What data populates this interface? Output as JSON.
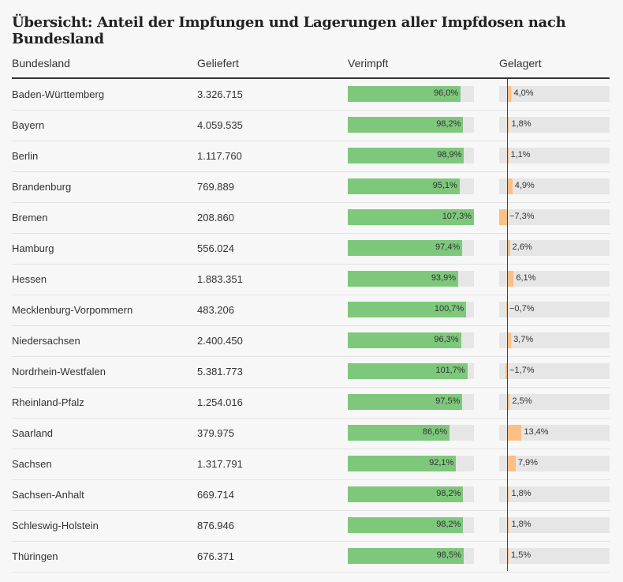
{
  "chart_data": {
    "type": "table",
    "title": "Übersicht: Anteil der Impfungen und Lagerungen aller Impfdosen nach Bundesland",
    "columns": [
      "Bundesland",
      "Geliefert",
      "Verimpft",
      "Gelagert"
    ],
    "rows": [
      {
        "land": "Baden-Württemberg",
        "geliefert": "3.326.715",
        "verimpft": 96.0,
        "verimpft_label": "96,0%",
        "gelagert": 4.0,
        "gelagert_label": "4,0%"
      },
      {
        "land": "Bayern",
        "geliefert": "4.059.535",
        "verimpft": 98.2,
        "verimpft_label": "98,2%",
        "gelagert": 1.8,
        "gelagert_label": "1,8%"
      },
      {
        "land": "Berlin",
        "geliefert": "1.117.760",
        "verimpft": 98.9,
        "verimpft_label": "98,9%",
        "gelagert": 1.1,
        "gelagert_label": "1,1%"
      },
      {
        "land": "Brandenburg",
        "geliefert": "769.889",
        "verimpft": 95.1,
        "verimpft_label": "95,1%",
        "gelagert": 4.9,
        "gelagert_label": "4,9%"
      },
      {
        "land": "Bremen",
        "geliefert": "208.860",
        "verimpft": 107.3,
        "verimpft_label": "107,3%",
        "gelagert": -7.3,
        "gelagert_label": "−7,3%"
      },
      {
        "land": "Hamburg",
        "geliefert": "556.024",
        "verimpft": 97.4,
        "verimpft_label": "97,4%",
        "gelagert": 2.6,
        "gelagert_label": "2,6%"
      },
      {
        "land": "Hessen",
        "geliefert": "1.883.351",
        "verimpft": 93.9,
        "verimpft_label": "93,9%",
        "gelagert": 6.1,
        "gelagert_label": "6,1%"
      },
      {
        "land": "Mecklenburg-Vorpommern",
        "geliefert": "483.206",
        "verimpft": 100.7,
        "verimpft_label": "100,7%",
        "gelagert": -0.7,
        "gelagert_label": "−0,7%"
      },
      {
        "land": "Niedersachsen",
        "geliefert": "2.400.450",
        "verimpft": 96.3,
        "verimpft_label": "96,3%",
        "gelagert": 3.7,
        "gelagert_label": "3,7%"
      },
      {
        "land": "Nordrhein-Westfalen",
        "geliefert": "5.381.773",
        "verimpft": 101.7,
        "verimpft_label": "101,7%",
        "gelagert": -1.7,
        "gelagert_label": "−1,7%"
      },
      {
        "land": "Rheinland-Pfalz",
        "geliefert": "1.254.016",
        "verimpft": 97.5,
        "verimpft_label": "97,5%",
        "gelagert": 2.5,
        "gelagert_label": "2,5%"
      },
      {
        "land": "Saarland",
        "geliefert": "379.975",
        "verimpft": 86.6,
        "verimpft_label": "86,6%",
        "gelagert": 13.4,
        "gelagert_label": "13,4%"
      },
      {
        "land": "Sachsen",
        "geliefert": "1.317.791",
        "verimpft": 92.1,
        "verimpft_label": "92,1%",
        "gelagert": 7.9,
        "gelagert_label": "7,9%"
      },
      {
        "land": "Sachsen-Anhalt",
        "geliefert": "669.714",
        "verimpft": 98.2,
        "verimpft_label": "98,2%",
        "gelagert": 1.8,
        "gelagert_label": "1,8%"
      },
      {
        "land": "Schleswig-Holstein",
        "geliefert": "876.946",
        "verimpft": 98.2,
        "verimpft_label": "98,2%",
        "gelagert": 1.8,
        "gelagert_label": "1,8%"
      },
      {
        "land": "Thüringen",
        "geliefert": "676.371",
        "verimpft": 98.5,
        "verimpft_label": "98,5%",
        "gelagert": 1.5,
        "gelagert_label": "1,5%"
      }
    ],
    "verimpft_max": 107.3,
    "colors": {
      "verimpft": "#7ec87c",
      "gelagert": "#fcbf85",
      "track": "#e6e6e6"
    }
  }
}
